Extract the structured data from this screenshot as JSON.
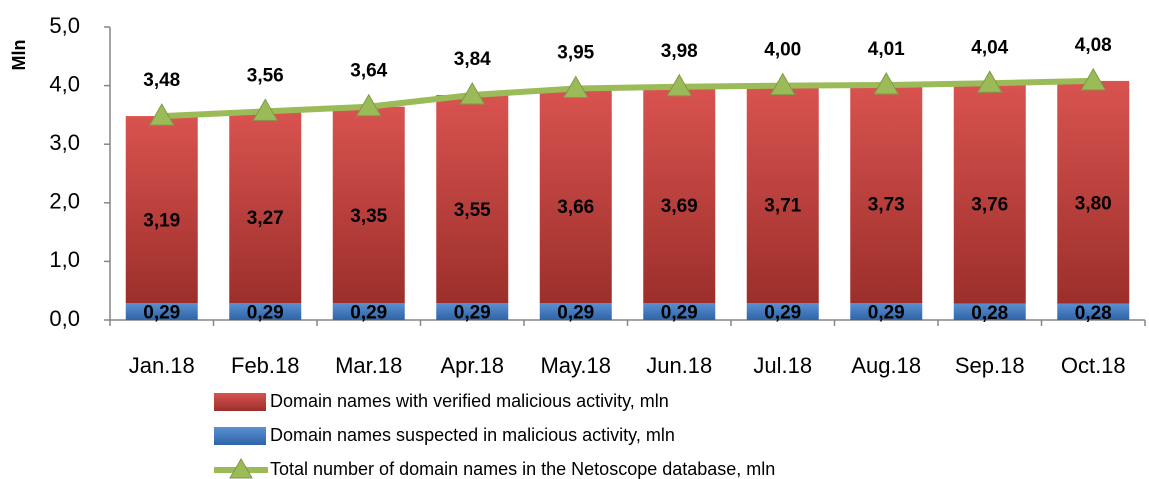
{
  "chart_data": {
    "type": "stacked_bar_line",
    "y_label": "Mln",
    "categories": [
      "Jan.18",
      "Feb.18",
      "Mar.18",
      "Apr.18",
      "May.18",
      "Jun.18",
      "Jul.18",
      "Aug.18",
      "Sep.18",
      "Oct.18"
    ],
    "series": [
      {
        "name": "Domain names with verified malicious activity, mln",
        "color": "#c0504d",
        "kind": "bar",
        "values": [
          3.19,
          3.27,
          3.35,
          3.55,
          3.66,
          3.69,
          3.71,
          3.73,
          3.76,
          3.8
        ],
        "value_labels": [
          "3,19",
          "3,27",
          "3,35",
          "3,55",
          "3,66",
          "3,69",
          "3,71",
          "3,73",
          "3,76",
          "3,80"
        ]
      },
      {
        "name": "Domain names suspected in malicious activity, mln",
        "color": "#4f81bd",
        "kind": "bar",
        "values": [
          0.29,
          0.29,
          0.29,
          0.29,
          0.29,
          0.29,
          0.29,
          0.29,
          0.28,
          0.28
        ],
        "value_labels": [
          "0,29",
          "0,29",
          "0,29",
          "0,29",
          "0,29",
          "0,29",
          "0,29",
          "0,29",
          "0,28",
          "0,28"
        ]
      },
      {
        "name": "Total number of domain names in the Netoscope database, mln",
        "color": "#9bbb59",
        "kind": "line",
        "values": [
          3.48,
          3.56,
          3.64,
          3.84,
          3.95,
          3.98,
          4.0,
          4.01,
          4.04,
          4.08
        ],
        "value_labels": [
          "3,48",
          "3,56",
          "3,64",
          "3,84",
          "3,95",
          "3,98",
          "4,00",
          "4,01",
          "4,04",
          "4,08"
        ]
      }
    ],
    "ylim": [
      0,
      5
    ],
    "yticks": [
      {
        "value": 0,
        "label": "0,0"
      },
      {
        "value": 1,
        "label": "1,0"
      },
      {
        "value": 2,
        "label": "2,0"
      },
      {
        "value": 3,
        "label": "3,0"
      },
      {
        "value": 4,
        "label": "4,0"
      },
      {
        "value": 5,
        "label": "5,0"
      }
    ],
    "grid": false
  }
}
